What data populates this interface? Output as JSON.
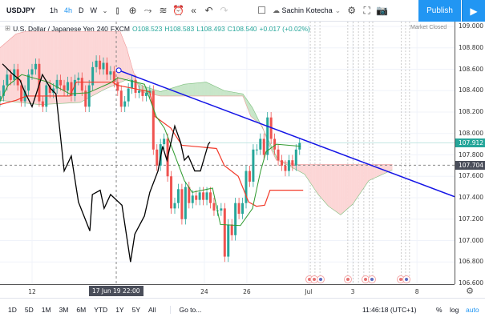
{
  "toolbar": {
    "symbol": "USDJPY",
    "timeframes": [
      "1h",
      "4h",
      "D",
      "W"
    ],
    "active_timeframe": "4h",
    "user": "Sachin Kotecha",
    "publish": "Publish"
  },
  "legend": {
    "name": "U.S. Dollar / Japanese Yen",
    "interval": "240",
    "source": "FXCM",
    "open": "O108.523",
    "high": "H108.583",
    "low": "L108.493",
    "close": "C108.540",
    "change": "+0.017 (+0.02%)",
    "market_status": "Market Closed"
  },
  "price_axis": {
    "labels": [
      "109.000",
      "108.800",
      "108.600",
      "108.400",
      "108.200",
      "108.000",
      "107.800",
      "107.600",
      "107.400",
      "107.200",
      "107.000",
      "106.800",
      "106.600"
    ],
    "last_price": "107.912",
    "crosshair_price": "107.704",
    "last_color": "#26a69a"
  },
  "time_axis": {
    "ticks": [
      {
        "label": "12",
        "bar": 0
      },
      {
        "label": "24",
        "bar": 48.3
      },
      {
        "label": "26",
        "bar": 60.2
      },
      {
        "label": "Jul",
        "bar": 77.5
      },
      {
        "label": "3",
        "bar": 89.9
      },
      {
        "label": "8",
        "bar": 107.9
      }
    ],
    "crosshair_label": "17 Jun 19   22:00"
  },
  "bottom": {
    "ranges": [
      "1D",
      "5D",
      "1M",
      "3M",
      "6M",
      "YTD",
      "1Y",
      "5Y",
      "All"
    ],
    "goto": "Go to...",
    "clock": "11:46:18 (UTC+1)",
    "percent": "%",
    "log": "log",
    "auto": "auto"
  },
  "chart_data": {
    "type": "candlestick",
    "ylim": [
      106.6,
      109.0
    ],
    "colors": {
      "up": "#26a69a",
      "down": "#ef5350",
      "tenkan": "#2e9a2e",
      "kijun": "#f23a2a",
      "chikou": "#000000",
      "cloud_bull": "#c8e6c9",
      "cloud_bear": "#fcd6d6",
      "trendline": "#1414e6"
    },
    "first_bar": -9,
    "first_open": 108.3,
    "closes": [
      108.35,
      108.45,
      108.55,
      108.5,
      108.6,
      108.45,
      108.3,
      108.4,
      108.55,
      108.6,
      108.65,
      108.3,
      108.25,
      108.45,
      108.38,
      108.42,
      108.5,
      108.45,
      108.4,
      108.48,
      108.35,
      108.5,
      108.52,
      108.4,
      108.25,
      108.45,
      108.62,
      108.68,
      108.6,
      108.66,
      108.55,
      108.58,
      108.48,
      108.4,
      108.25,
      108.3,
      108.42,
      108.5,
      108.38,
      108.4,
      108.35,
      108.38,
      108.4,
      107.85,
      107.7,
      107.9,
      107.95,
      107.6,
      107.3,
      107.35,
      107.48,
      107.2,
      107.5,
      107.35,
      107.42,
      107.38,
      107.45,
      107.38,
      107.45,
      107.35,
      107.28,
      107.28,
      107.3,
      106.85,
      107.15,
      107.05,
      107.35,
      107.25,
      107.35,
      107.65,
      107.55,
      107.85,
      107.85,
      107.95,
      107.8,
      108.15,
      107.95,
      107.85,
      107.75,
      107.7,
      107.65,
      107.75,
      107.7,
      107.85,
      107.912
    ],
    "tenkan": [
      [
        -9,
        108.3
      ],
      [
        -6.7,
        108.45
      ],
      [
        -2.9,
        108.55
      ],
      [
        4.5,
        108.48
      ],
      [
        10.6,
        108.37
      ],
      [
        15.7,
        108.38
      ],
      [
        21.8,
        108.47
      ],
      [
        24,
        108.52
      ],
      [
        31.5,
        108.46
      ],
      [
        34.8,
        108.16
      ],
      [
        37.1,
        108.05
      ],
      [
        39.3,
        107.86
      ],
      [
        42.7,
        107.56
      ],
      [
        44.9,
        107.45
      ],
      [
        50.6,
        107.49
      ],
      [
        52.8,
        107.15
      ],
      [
        58.4,
        107.14
      ],
      [
        61.8,
        107.3
      ],
      [
        64,
        107.64
      ],
      [
        65.6,
        107.83
      ],
      [
        68.5,
        107.9
      ],
      [
        75.3,
        107.88
      ]
    ],
    "kijun": [
      [
        -9,
        108.27
      ],
      [
        -4.5,
        108.31
      ],
      [
        -1.6,
        108.35
      ],
      [
        10.6,
        108.35
      ],
      [
        12.4,
        108.48
      ],
      [
        22.5,
        108.48
      ],
      [
        24,
        108.45
      ],
      [
        33,
        108.39
      ],
      [
        34.4,
        108.16
      ],
      [
        38.9,
        108.05
      ],
      [
        42,
        107.89
      ],
      [
        51.7,
        107.86
      ],
      [
        53.9,
        107.7
      ],
      [
        57.8,
        107.6
      ],
      [
        60.7,
        107.36
      ],
      [
        62.9,
        107.32
      ],
      [
        65.2,
        107.33
      ],
      [
        66.7,
        107.47
      ],
      [
        76,
        107.47
      ]
    ],
    "chikou": [
      [
        -8.3,
        108.65
      ],
      [
        -5.6,
        108.56
      ],
      [
        -3.4,
        108.5
      ],
      [
        -2.2,
        108.4
      ],
      [
        0,
        108.25
      ],
      [
        2.9,
        108.55
      ],
      [
        5.2,
        108.42
      ],
      [
        6.7,
        108.37
      ],
      [
        9,
        107.65
      ],
      [
        11,
        107.79
      ],
      [
        13,
        107.36
      ],
      [
        16.2,
        107.09
      ],
      [
        16.9,
        107.43
      ],
      [
        19.1,
        107.47
      ],
      [
        20.2,
        107.3
      ],
      [
        22,
        107.43
      ],
      [
        25.2,
        107.33
      ],
      [
        27.6,
        106.8
      ],
      [
        28.8,
        107.06
      ],
      [
        31.5,
        107.23
      ],
      [
        33,
        107.45
      ],
      [
        35.3,
        107.65
      ],
      [
        36.6,
        107.88
      ],
      [
        37.8,
        107.75
      ],
      [
        40,
        108.07
      ],
      [
        41.6,
        107.92
      ],
      [
        42.7,
        107.75
      ],
      [
        43.8,
        107.79
      ],
      [
        45.6,
        107.65
      ],
      [
        47.2,
        107.65
      ],
      [
        49.4,
        107.9
      ],
      [
        49.9,
        107.92
      ]
    ],
    "span_a": [
      [
        -9,
        108.31
      ],
      [
        2.2,
        108.27
      ],
      [
        13.5,
        108.29
      ],
      [
        20.2,
        108.41
      ],
      [
        27,
        108.51
      ],
      [
        31.5,
        108.44
      ],
      [
        36,
        108.39
      ],
      [
        42.7,
        108.46
      ],
      [
        48.8,
        108.48
      ],
      [
        53.9,
        108.4
      ],
      [
        59.1,
        108.37
      ],
      [
        61.8,
        108.24
      ],
      [
        65.2,
        108.01
      ],
      [
        69,
        107.75
      ],
      [
        71.9,
        107.7
      ],
      [
        76.4,
        107.62
      ],
      [
        80.2,
        107.43
      ],
      [
        83.1,
        107.32
      ],
      [
        86.5,
        107.24
      ],
      [
        89.9,
        107.34
      ],
      [
        94.4,
        107.56
      ],
      [
        101,
        107.66
      ]
    ],
    "span_b": [
      [
        -9,
        108.8
      ],
      [
        -4.5,
        108.93
      ],
      [
        -2.2,
        108.95
      ],
      [
        24.7,
        108.95
      ],
      [
        26.5,
        108.8
      ],
      [
        28.1,
        108.61
      ],
      [
        30.3,
        108.39
      ],
      [
        36,
        108.35
      ],
      [
        59.1,
        108.35
      ],
      [
        61.3,
        108.16
      ],
      [
        64.5,
        108.07
      ],
      [
        66.3,
        107.9
      ],
      [
        68.5,
        107.75
      ],
      [
        74.2,
        107.71
      ],
      [
        101,
        107.71
      ]
    ],
    "trendline": [
      [
        24.3,
        108.59
      ],
      [
        118.4,
        107.41
      ]
    ],
    "crosshair_bar": 23.6
  }
}
